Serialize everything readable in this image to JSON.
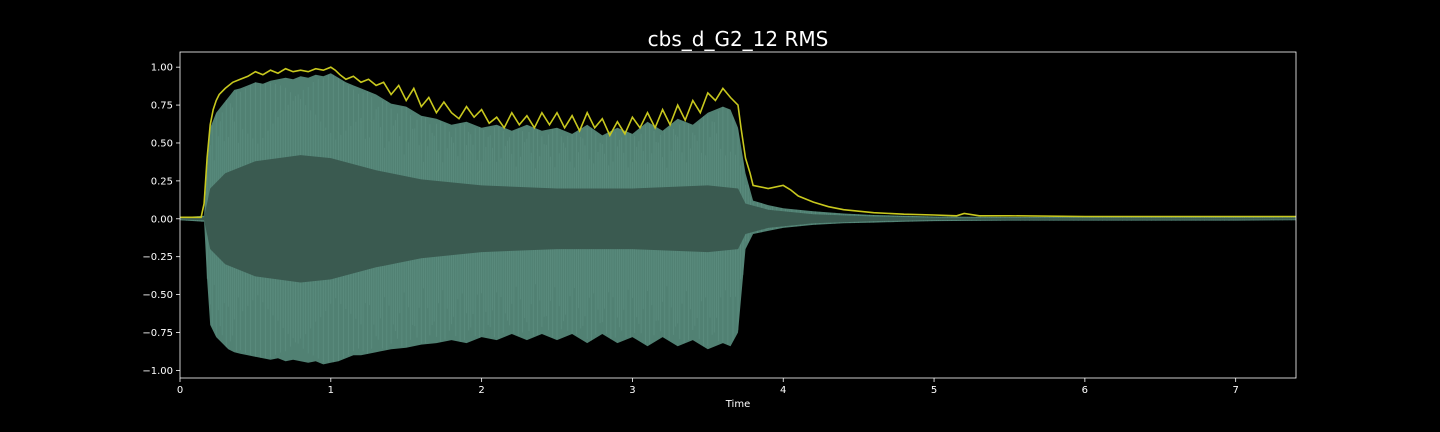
{
  "chart_data": {
    "type": "area",
    "title": "cbs_d_G2_12 RMS",
    "xlabel": "Time",
    "ylabel": "",
    "xlim": [
      0,
      7.4
    ],
    "ylim": [
      -1.05,
      1.1
    ],
    "xticks": [
      0,
      1,
      2,
      3,
      4,
      5,
      6,
      7
    ],
    "xtick_labels": [
      "0",
      "1",
      "2",
      "3",
      "4",
      "5",
      "6",
      "7"
    ],
    "yticks": [
      1.0,
      0.75,
      0.5,
      0.25,
      0.0,
      -0.25,
      -0.5,
      -0.75,
      -1.0
    ],
    "ytick_labels": [
      "1.00",
      "0.75",
      "0.50",
      "0.25",
      "0.00",
      "−0.25",
      "−0.50",
      "−0.75",
      "−1.00"
    ],
    "grid": false,
    "series": [
      {
        "kind": "waveform-peak",
        "color": "#5a8f80",
        "x": [
          0,
          0.16,
          0.18,
          0.2,
          0.24,
          0.28,
          0.32,
          0.36,
          0.4,
          0.45,
          0.5,
          0.55,
          0.6,
          0.65,
          0.7,
          0.75,
          0.8,
          0.85,
          0.9,
          0.95,
          1.0,
          1.05,
          1.1,
          1.15,
          1.2,
          1.3,
          1.4,
          1.5,
          1.6,
          1.7,
          1.8,
          1.9,
          2.0,
          2.1,
          2.2,
          2.3,
          2.4,
          2.5,
          2.6,
          2.7,
          2.8,
          2.9,
          3.0,
          3.1,
          3.2,
          3.3,
          3.4,
          3.5,
          3.6,
          3.65,
          3.7,
          3.75,
          3.8,
          3.9,
          4.0,
          4.1,
          4.2,
          4.4,
          4.6,
          4.8,
          5.0,
          5.5,
          6.0,
          6.5,
          7.0,
          7.4
        ],
        "upper": [
          0.01,
          0.02,
          0.35,
          0.6,
          0.7,
          0.75,
          0.8,
          0.85,
          0.86,
          0.88,
          0.9,
          0.89,
          0.91,
          0.92,
          0.93,
          0.92,
          0.94,
          0.93,
          0.95,
          0.94,
          0.96,
          0.93,
          0.9,
          0.88,
          0.86,
          0.82,
          0.76,
          0.74,
          0.68,
          0.66,
          0.62,
          0.64,
          0.6,
          0.62,
          0.58,
          0.62,
          0.58,
          0.6,
          0.56,
          0.62,
          0.55,
          0.6,
          0.56,
          0.64,
          0.58,
          0.66,
          0.62,
          0.7,
          0.74,
          0.72,
          0.6,
          0.3,
          0.12,
          0.09,
          0.07,
          0.06,
          0.05,
          0.035,
          0.025,
          0.02,
          0.015,
          0.012,
          0.012,
          0.012,
          0.012,
          0.01
        ],
        "lower": [
          -0.01,
          -0.02,
          -0.4,
          -0.7,
          -0.78,
          -0.82,
          -0.86,
          -0.88,
          -0.89,
          -0.9,
          -0.91,
          -0.92,
          -0.93,
          -0.92,
          -0.94,
          -0.93,
          -0.94,
          -0.95,
          -0.94,
          -0.96,
          -0.95,
          -0.94,
          -0.92,
          -0.9,
          -0.9,
          -0.88,
          -0.86,
          -0.85,
          -0.83,
          -0.82,
          -0.8,
          -0.82,
          -0.78,
          -0.8,
          -0.76,
          -0.8,
          -0.76,
          -0.8,
          -0.76,
          -0.82,
          -0.76,
          -0.82,
          -0.78,
          -0.84,
          -0.78,
          -0.84,
          -0.8,
          -0.86,
          -0.82,
          -0.84,
          -0.75,
          -0.2,
          -0.1,
          -0.08,
          -0.06,
          -0.05,
          -0.04,
          -0.03,
          -0.025,
          -0.02,
          -0.015,
          -0.012,
          -0.012,
          -0.012,
          -0.012,
          -0.01
        ]
      },
      {
        "kind": "waveform-body",
        "color": "#3a5a50",
        "x": [
          0,
          0.16,
          0.2,
          0.3,
          0.5,
          0.8,
          1.0,
          1.3,
          1.6,
          2.0,
          2.5,
          3.0,
          3.5,
          3.7,
          3.75,
          3.9,
          4.2,
          4.6,
          5.0,
          7.4
        ],
        "upper": [
          0.005,
          0.01,
          0.2,
          0.3,
          0.38,
          0.42,
          0.4,
          0.32,
          0.26,
          0.22,
          0.2,
          0.2,
          0.22,
          0.2,
          0.1,
          0.06,
          0.03,
          0.015,
          0.008,
          0.005
        ],
        "lower": [
          -0.005,
          -0.01,
          -0.2,
          -0.3,
          -0.38,
          -0.42,
          -0.4,
          -0.32,
          -0.26,
          -0.22,
          -0.2,
          -0.2,
          -0.22,
          -0.2,
          -0.1,
          -0.06,
          -0.03,
          -0.015,
          -0.008,
          -0.005
        ]
      },
      {
        "kind": "rms-line",
        "color": "#c8c81e",
        "x": [
          0,
          0.14,
          0.16,
          0.18,
          0.2,
          0.22,
          0.24,
          0.26,
          0.3,
          0.35,
          0.4,
          0.45,
          0.5,
          0.55,
          0.6,
          0.65,
          0.7,
          0.75,
          0.8,
          0.85,
          0.9,
          0.95,
          1.0,
          1.03,
          1.06,
          1.1,
          1.15,
          1.2,
          1.25,
          1.3,
          1.35,
          1.4,
          1.45,
          1.5,
          1.55,
          1.6,
          1.65,
          1.7,
          1.75,
          1.8,
          1.85,
          1.9,
          1.95,
          2.0,
          2.05,
          2.1,
          2.15,
          2.2,
          2.25,
          2.3,
          2.35,
          2.4,
          2.45,
          2.5,
          2.55,
          2.6,
          2.65,
          2.7,
          2.75,
          2.8,
          2.85,
          2.9,
          2.95,
          3.0,
          3.05,
          3.1,
          3.15,
          3.2,
          3.25,
          3.3,
          3.35,
          3.4,
          3.45,
          3.5,
          3.55,
          3.6,
          3.65,
          3.7,
          3.72,
          3.75,
          3.78,
          3.8,
          3.9,
          4.0,
          4.05,
          4.1,
          4.2,
          4.3,
          4.4,
          4.5,
          4.6,
          4.8,
          5.0,
          5.15,
          5.2,
          5.3,
          5.5,
          6.0,
          6.5,
          7.0,
          7.4
        ],
        "values": [
          0.01,
          0.01,
          0.1,
          0.4,
          0.62,
          0.72,
          0.78,
          0.82,
          0.86,
          0.9,
          0.92,
          0.94,
          0.97,
          0.95,
          0.98,
          0.96,
          0.99,
          0.97,
          0.98,
          0.97,
          0.99,
          0.98,
          1.0,
          0.98,
          0.95,
          0.92,
          0.94,
          0.9,
          0.92,
          0.88,
          0.9,
          0.82,
          0.88,
          0.78,
          0.86,
          0.74,
          0.8,
          0.7,
          0.77,
          0.7,
          0.66,
          0.74,
          0.67,
          0.72,
          0.63,
          0.67,
          0.6,
          0.7,
          0.62,
          0.68,
          0.6,
          0.7,
          0.62,
          0.7,
          0.6,
          0.68,
          0.58,
          0.7,
          0.6,
          0.66,
          0.55,
          0.64,
          0.56,
          0.67,
          0.6,
          0.7,
          0.6,
          0.72,
          0.62,
          0.75,
          0.65,
          0.78,
          0.7,
          0.83,
          0.78,
          0.86,
          0.8,
          0.75,
          0.6,
          0.4,
          0.3,
          0.22,
          0.2,
          0.22,
          0.19,
          0.15,
          0.11,
          0.08,
          0.06,
          0.05,
          0.04,
          0.03,
          0.025,
          0.02,
          0.035,
          0.02,
          0.02,
          0.015,
          0.015,
          0.015,
          0.015
        ]
      }
    ]
  }
}
